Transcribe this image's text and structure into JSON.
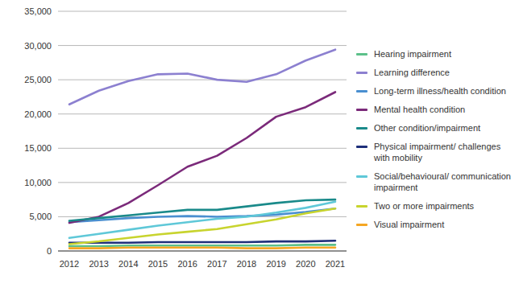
{
  "chart_data": {
    "type": "line",
    "categories": [
      "2012",
      "2013",
      "2014",
      "2015",
      "2016",
      "2017",
      "2018",
      "2019",
      "2020",
      "2021"
    ],
    "ylim": [
      0,
      35000
    ],
    "yticks": [
      0,
      {
        "value": 5000,
        "label": "5,000"
      },
      {
        "value": 10000,
        "label": "10,000"
      },
      {
        "value": 15000,
        "label": "15,000"
      },
      {
        "value": 20000,
        "label": "20,000"
      },
      {
        "value": 25000,
        "label": "25,000"
      },
      {
        "value": 30000,
        "label": "30,000"
      },
      {
        "value": 35000,
        "label": "35,000"
      }
    ],
    "grid": true,
    "legend": "right",
    "series": [
      {
        "name": "Hearing impairment",
        "color": "#5cc08a",
        "values": [
          700,
          700,
          800,
          800,
          800,
          800,
          800,
          800,
          900,
          900
        ]
      },
      {
        "name": "Learning difference",
        "color": "#8c80d0",
        "values": [
          21400,
          23400,
          24800,
          25800,
          25900,
          25000,
          24700,
          25800,
          27800,
          29400
        ]
      },
      {
        "name": "Long-term illness/health condition",
        "color": "#4a8fd0",
        "values": [
          4200,
          4500,
          4800,
          5000,
          5100,
          5000,
          5100,
          5300,
          5700,
          6200
        ]
      },
      {
        "name": "Mental health condition",
        "color": "#7b2a7a",
        "values": [
          4100,
          5000,
          7000,
          9600,
          12300,
          13900,
          16500,
          19600,
          21000,
          23200
        ]
      },
      {
        "name": "Other condition/impairment",
        "color": "#1a8a8a",
        "values": [
          4400,
          4800,
          5200,
          5600,
          6000,
          6000,
          6500,
          7000,
          7400,
          7500
        ]
      },
      {
        "name": "Physical impairment/ challenges with mobility",
        "color": "#1e2f7a",
        "values": [
          1200,
          1200,
          1200,
          1300,
          1300,
          1300,
          1300,
          1400,
          1400,
          1500
        ]
      },
      {
        "name": "Social/behavioural/ communication impairment",
        "color": "#5fc8d8",
        "values": [
          1900,
          2500,
          3100,
          3700,
          4200,
          4700,
          5000,
          5600,
          6300,
          7200
        ]
      },
      {
        "name": "Two or more impairments",
        "color": "#c8d42e",
        "values": [
          1000,
          1400,
          1900,
          2400,
          2800,
          3200,
          3900,
          4600,
          5500,
          6200
        ]
      },
      {
        "name": "Visual impairment",
        "color": "#f5a623",
        "values": [
          400,
          400,
          500,
          500,
          500,
          500,
          400,
          400,
          500,
          500
        ]
      }
    ]
  }
}
